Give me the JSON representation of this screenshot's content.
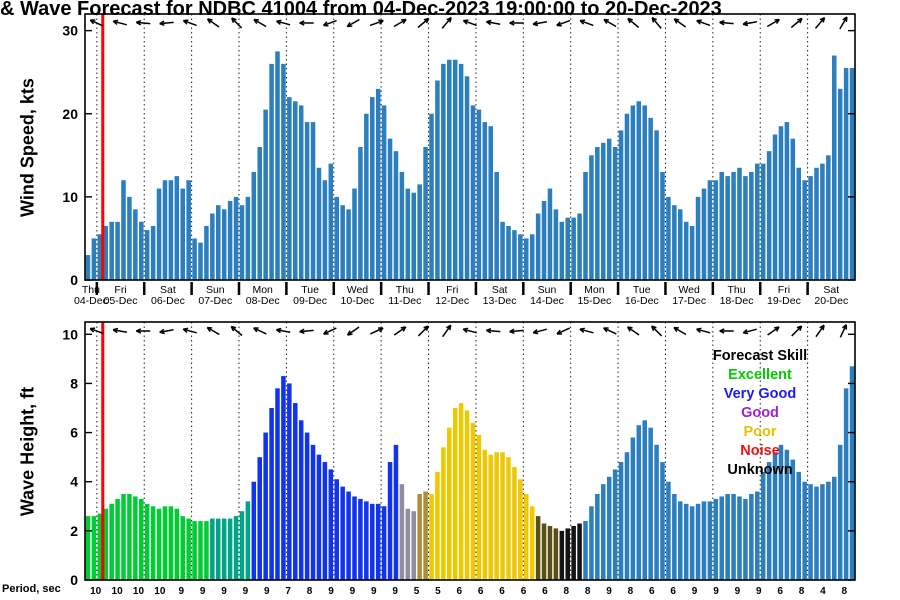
{
  "title": "& Wave Forecast for NDBC 41004 from 04-Dec-2023 19:00:00 to 20-Dec-2023",
  "now_line": {
    "color": "#ff0000",
    "bar_index": 3
  },
  "chart_data": [
    {
      "type": "bar",
      "panel": "top",
      "series_name": "Wind Speed",
      "ylabel": "Wind Speed, kts",
      "ylim": [
        0,
        32
      ],
      "yticks": [
        0,
        10,
        20,
        30
      ],
      "bar_color": "#2b7fbe",
      "x_step": "3 hours",
      "values": [
        3,
        5,
        5.5,
        6.5,
        7,
        7,
        12,
        10,
        8.5,
        7,
        6,
        6.5,
        11,
        12,
        12,
        12.5,
        11,
        12,
        5,
        4.5,
        6.5,
        8,
        9,
        8.5,
        9.5,
        10,
        9,
        10,
        13,
        16,
        20.5,
        26,
        27.5,
        26,
        22,
        21.5,
        21,
        19,
        19,
        13.5,
        12,
        14,
        10,
        9,
        8.5,
        11,
        16,
        20,
        22,
        23,
        21,
        17,
        15.5,
        13,
        11,
        10.5,
        11.5,
        16,
        20,
        24,
        26,
        26.5,
        26.5,
        26,
        24.5,
        21,
        20.5,
        19,
        18.5,
        13,
        7,
        6.5,
        6,
        5.5,
        5,
        5.5,
        8,
        9.5,
        11,
        8.5,
        7,
        7.5,
        7.5,
        8,
        13,
        15,
        16,
        16.5,
        17,
        16,
        18,
        20,
        21,
        21.5,
        21,
        19.5,
        18,
        13,
        10,
        9,
        8.5,
        7,
        6.5,
        10,
        11,
        12,
        12,
        13,
        12.5,
        13,
        13.5,
        12.5,
        13,
        14,
        14,
        15.5,
        17.5,
        18.5,
        19,
        17,
        13.5,
        12,
        12.5,
        13.5,
        14,
        15,
        27,
        23,
        25.5,
        25.5
      ],
      "arrow_angles_deg": [
        205,
        195,
        185,
        175,
        200,
        215,
        225,
        210,
        195,
        180,
        160,
        150,
        340,
        330,
        320,
        310,
        200,
        190,
        180,
        170,
        160,
        200,
        210,
        220,
        230,
        215,
        200,
        185,
        170,
        330,
        320,
        310,
        300
      ]
    },
    {
      "type": "bar",
      "panel": "bottom",
      "series_name": "Wave Height",
      "ylabel": "Wave Height, ft",
      "ylim": [
        0,
        10.5
      ],
      "yticks": [
        0,
        2,
        4,
        6,
        8,
        10
      ],
      "x_step": "3 hours",
      "values": [
        2.6,
        2.6,
        2.7,
        2.9,
        3.1,
        3.3,
        3.5,
        3.5,
        3.4,
        3.3,
        3.1,
        3.0,
        2.9,
        3.0,
        3.0,
        2.9,
        2.6,
        2.5,
        2.4,
        2.4,
        2.4,
        2.5,
        2.5,
        2.5,
        2.5,
        2.6,
        2.8,
        3.2,
        4.0,
        5.0,
        6.0,
        7.0,
        7.8,
        8.3,
        8.0,
        7.2,
        6.5,
        6.0,
        5.5,
        5.1,
        4.8,
        4.5,
        4.1,
        3.8,
        3.6,
        3.4,
        3.3,
        3.2,
        3.1,
        3.1,
        3.0,
        4.8,
        5.5,
        3.9,
        2.9,
        2.8,
        3.5,
        3.6,
        3.5,
        4.4,
        5.4,
        6.2,
        7.0,
        7.2,
        6.9,
        6.4,
        5.9,
        5.3,
        5.1,
        5.2,
        5.2,
        5.0,
        4.6,
        4.1,
        3.5,
        3.0,
        2.6,
        2.3,
        2.2,
        2.1,
        2.0,
        2.1,
        2.2,
        2.3,
        2.4,
        3.0,
        3.5,
        3.9,
        4.2,
        4.5,
        4.8,
        5.2,
        5.8,
        6.3,
        6.5,
        6.2,
        5.5,
        4.8,
        4.0,
        3.5,
        3.2,
        3.1,
        3.0,
        3.1,
        3.2,
        3.2,
        3.3,
        3.4,
        3.5,
        3.5,
        3.4,
        3.3,
        3.5,
        3.6,
        4.4,
        4.8,
        5.2,
        5.5,
        5.3,
        4.9,
        4.4,
        4.0,
        3.9,
        3.8,
        3.9,
        4.0,
        4.2,
        5.5,
        7.8,
        8.7
      ],
      "color_segments": [
        {
          "count": 21,
          "color": "#00cc33",
          "skill": "Excellent"
        },
        {
          "count": 7,
          "color": "#00a487",
          "skill": "Excellent"
        },
        {
          "count": 25,
          "color": "#1133ee",
          "skill": "Very Good"
        },
        {
          "count": 3,
          "color": "#8e8e9e",
          "skill": "Good"
        },
        {
          "count": 2,
          "color": "#ad8d3a",
          "skill": "Poor"
        },
        {
          "count": 18,
          "color": "#eec900",
          "skill": "Poor"
        },
        {
          "count": 4,
          "color": "#5a4f14",
          "skill": "Unknown"
        },
        {
          "count": 4,
          "color": "#141414",
          "skill": "Unknown"
        },
        {
          "count": 46,
          "color": "#2b7fbe",
          "skill": "Unrated"
        }
      ],
      "arrow_angles_deg": [
        200,
        190,
        180,
        170,
        195,
        210,
        220,
        205,
        190,
        175,
        155,
        145,
        335,
        325,
        315,
        305,
        195,
        185,
        175,
        165,
        155,
        195,
        205,
        215,
        225,
        210,
        195,
        180,
        165,
        325,
        315,
        305,
        295
      ],
      "legend": {
        "title": "Forecast Skill",
        "items": [
          {
            "label": "Excellent",
            "color": "#00cc00"
          },
          {
            "label": "Very Good",
            "color": "#1a1aee"
          },
          {
            "label": "Good",
            "color": "#a020d0"
          },
          {
            "label": "Poor",
            "color": "#e6c300"
          },
          {
            "label": "Noise",
            "color": "#ee1111"
          },
          {
            "label": "Unknown",
            "color": "#000000"
          }
        ]
      }
    }
  ],
  "x_axis": {
    "days": [
      {
        "name": "Thu",
        "date": "04-Dec",
        "bars": 2
      },
      {
        "name": "Fri",
        "date": "05-Dec",
        "bars": 8
      },
      {
        "name": "Sat",
        "date": "06-Dec",
        "bars": 8
      },
      {
        "name": "Sun",
        "date": "07-Dec",
        "bars": 8
      },
      {
        "name": "Mon",
        "date": "08-Dec",
        "bars": 8
      },
      {
        "name": "Tue",
        "date": "09-Dec",
        "bars": 8
      },
      {
        "name": "Wed",
        "date": "10-Dec",
        "bars": 8
      },
      {
        "name": "Thu",
        "date": "11-Dec",
        "bars": 8
      },
      {
        "name": "Fri",
        "date": "12-Dec",
        "bars": 8
      },
      {
        "name": "Sat",
        "date": "13-Dec",
        "bars": 8
      },
      {
        "name": "Sun",
        "date": "14-Dec",
        "bars": 8
      },
      {
        "name": "Mon",
        "date": "15-Dec",
        "bars": 8
      },
      {
        "name": "Tue",
        "date": "16-Dec",
        "bars": 8
      },
      {
        "name": "Wed",
        "date": "17-Dec",
        "bars": 8
      },
      {
        "name": "Thu",
        "date": "18-Dec",
        "bars": 8
      },
      {
        "name": "Fri",
        "date": "19-Dec",
        "bars": 8
      },
      {
        "name": "Sat",
        "date": "20-Dec",
        "bars": 8
      }
    ]
  },
  "period_axis": {
    "label": "Period, sec",
    "values": [
      10,
      10,
      10,
      10,
      9,
      9,
      9,
      9,
      9,
      7,
      8,
      9,
      9,
      9,
      9,
      5,
      5,
      6,
      6,
      6,
      6,
      6,
      8,
      8,
      9,
      8,
      6,
      6,
      9,
      9,
      9,
      9,
      6,
      8,
      4,
      8
    ]
  }
}
